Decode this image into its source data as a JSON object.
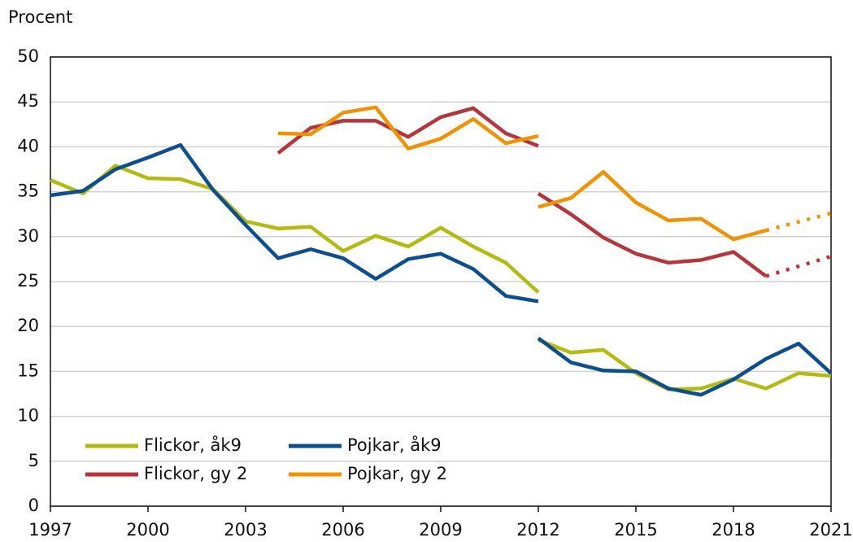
{
  "chart_data": {
    "type": "line",
    "ylabel": "Procent",
    "x": [
      1997,
      1998,
      1999,
      2000,
      2001,
      2002,
      2003,
      2004,
      2005,
      2006,
      2007,
      2008,
      2009,
      2010,
      2011,
      2012,
      2012,
      2012,
      2013,
      2014,
      2015,
      2016,
      2017,
      2018,
      2019,
      2020,
      2021
    ],
    "series": [
      {
        "name": "Flickor, åk9",
        "color": "#b3bc0c",
        "values": [
          36.3,
          34.8,
          37.9,
          36.5,
          36.4,
          35.3,
          31.7,
          30.9,
          31.1,
          28.4,
          30.1,
          28.9,
          31.0,
          28.9,
          27.1,
          23.8,
          null,
          18.5,
          17.1,
          17.4,
          14.8,
          13.0,
          13.1,
          14.2,
          13.1,
          14.8,
          14.5
        ]
      },
      {
        "name": "Pojkar, åk9",
        "color": "#0b4f91",
        "values": [
          34.6,
          35.1,
          37.5,
          38.8,
          40.2,
          35.2,
          31.3,
          27.6,
          28.6,
          27.6,
          25.3,
          27.5,
          28.1,
          26.4,
          23.4,
          22.8,
          null,
          18.7,
          16.0,
          15.1,
          15.0,
          13.1,
          12.4,
          14.1,
          16.4,
          18.1,
          14.8
        ]
      },
      {
        "name": "Flickor, gy 2",
        "color": "#b8343a",
        "values": [
          null,
          null,
          null,
          null,
          null,
          null,
          null,
          39.3,
          42.1,
          42.9,
          42.9,
          41.1,
          43.3,
          44.3,
          41.5,
          40.1,
          null,
          34.8,
          32.5,
          29.9,
          28.1,
          27.1,
          27.4,
          28.3,
          25.6,
          null,
          null
        ],
        "dotted": {
          "x": [
            2019,
            2021
          ],
          "values": [
            25.6,
            27.8
          ]
        }
      },
      {
        "name": "Pojkar, gy 2",
        "color": "#f39200",
        "values": [
          null,
          null,
          null,
          null,
          null,
          null,
          null,
          41.5,
          41.4,
          43.8,
          44.4,
          39.8,
          40.9,
          43.1,
          40.4,
          41.2,
          null,
          33.3,
          34.3,
          37.2,
          33.8,
          31.8,
          32.0,
          29.7,
          30.7,
          null,
          null
        ],
        "dotted": {
          "x": [
            2019,
            2021
          ],
          "values": [
            30.7,
            32.6
          ]
        }
      }
    ],
    "xlim": [
      1997,
      2021
    ],
    "xticks": [
      1997,
      2000,
      2003,
      2006,
      2009,
      2012,
      2015,
      2018,
      2021
    ],
    "ylim": [
      0,
      50
    ],
    "yticks": [
      0,
      5,
      10,
      15,
      20,
      25,
      30,
      35,
      40,
      45,
      50
    ],
    "grid": true,
    "legend": "lower left"
  }
}
